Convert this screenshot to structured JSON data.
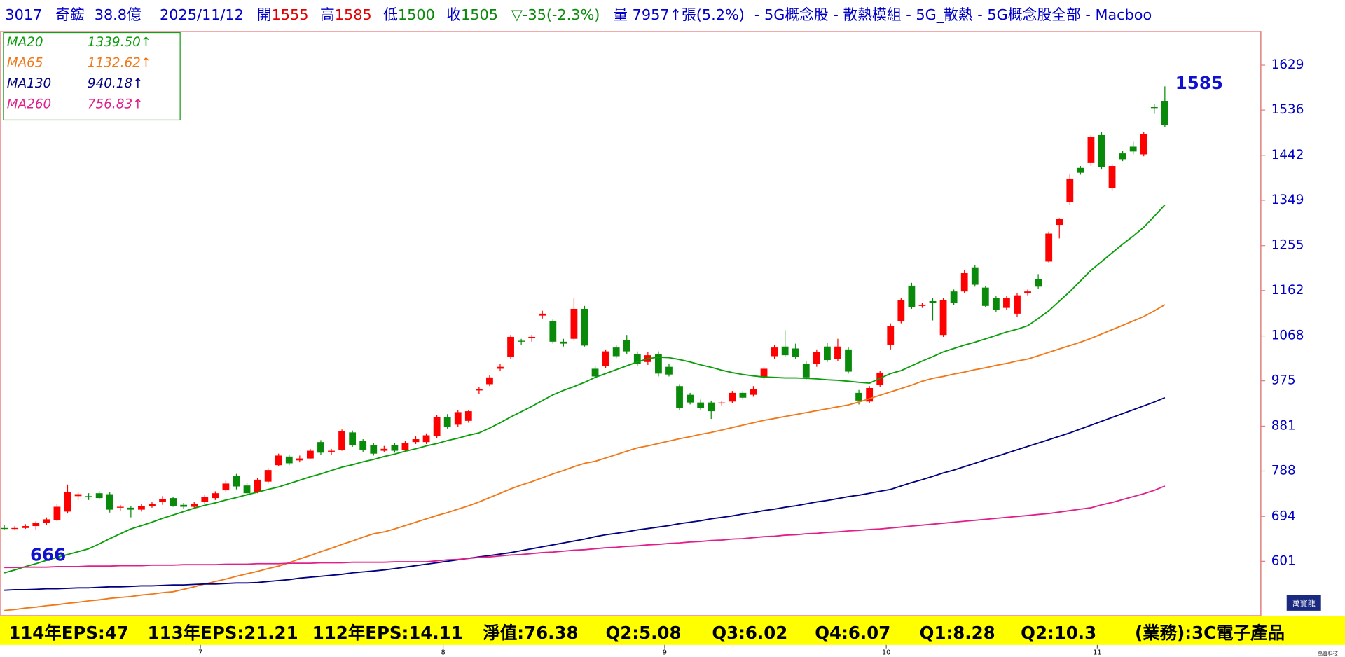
{
  "header": {
    "code": "3017",
    "name": "奇鋐",
    "market_cap": "38.8億",
    "date": "2025/11/12",
    "open_label": "開",
    "open": "1555",
    "high_label": "高",
    "high": "1585",
    "low_label": "低",
    "low": "1500",
    "close_label": "收",
    "close": "1505",
    "change": "▽-35(-2.3%)",
    "volume": "量 7957↑張(5.2%)",
    "groups": "- 5G概念股 - 散熱模組 - 5G_散熱 - 5G概念股全部 - Macboo"
  },
  "footer": {
    "items": [
      "114年EPS:47",
      "113年EPS:21.21",
      "112年EPS:14.11",
      "淨值:76.38",
      "Q2:5.08",
      "Q3:6.02",
      "Q4:6.07",
      "Q1:8.28",
      "Q2:10.3",
      "(業務):3C電子產品"
    ]
  },
  "watermark": "萬寶龍",
  "credit": "萬寶科技",
  "chart_data": {
    "type": "candlestick",
    "high_label": "1585",
    "low_label": "666",
    "up_color": "#ff0000",
    "down_color": "#0a8a0a",
    "ylim": [
      488,
      1700
    ],
    "yticks": [
      601,
      694,
      788,
      881,
      975,
      1068,
      1162,
      1255,
      1349,
      1442,
      1536,
      1629
    ],
    "grid": false,
    "legend": "top-left",
    "categories": [
      null,
      null,
      null,
      null,
      null,
      null,
      null,
      null,
      null,
      null,
      null,
      null,
      null,
      null,
      null,
      null,
      null,
      null,
      null,
      "7",
      null,
      null,
      null,
      null,
      null,
      null,
      null,
      null,
      null,
      null,
      null,
      null,
      null,
      null,
      null,
      null,
      null,
      null,
      null,
      null,
      null,
      null,
      "8",
      null,
      null,
      null,
      null,
      null,
      null,
      null,
      null,
      null,
      null,
      null,
      null,
      null,
      null,
      null,
      null,
      null,
      null,
      null,
      null,
      "9",
      null,
      null,
      null,
      null,
      null,
      null,
      null,
      null,
      null,
      null,
      null,
      null,
      null,
      null,
      null,
      null,
      null,
      null,
      null,
      null,
      "10",
      null,
      null,
      null,
      null,
      null,
      null,
      null,
      null,
      null,
      null,
      null,
      null,
      null,
      null,
      null,
      null,
      null,
      null,
      null,
      "11",
      null,
      null,
      null,
      null,
      null,
      null
    ],
    "candles": [
      [
        670,
        676,
        667,
        668
      ],
      [
        668,
        674,
        667,
        670
      ],
      [
        670,
        678,
        668,
        674
      ],
      [
        674,
        684,
        666,
        680
      ],
      [
        680,
        692,
        676,
        688
      ],
      [
        686,
        720,
        684,
        714
      ],
      [
        704,
        760,
        700,
        744
      ],
      [
        736,
        744,
        728,
        740
      ],
      [
        736,
        742,
        728,
        734
      ],
      [
        742,
        746,
        730,
        732
      ],
      [
        740,
        744,
        702,
        708
      ],
      [
        712,
        718,
        706,
        714
      ],
      [
        712,
        716,
        692,
        708
      ],
      [
        708,
        720,
        704,
        716
      ],
      [
        716,
        724,
        712,
        720
      ],
      [
        724,
        736,
        718,
        730
      ],
      [
        732,
        734,
        714,
        716
      ],
      [
        718,
        722,
        710,
        714
      ],
      [
        714,
        724,
        710,
        720
      ],
      [
        724,
        738,
        720,
        734
      ],
      [
        732,
        746,
        728,
        742
      ],
      [
        748,
        768,
        744,
        762
      ],
      [
        778,
        782,
        750,
        756
      ],
      [
        758,
        764,
        736,
        742
      ],
      [
        744,
        774,
        742,
        770
      ],
      [
        766,
        794,
        762,
        790
      ],
      [
        800,
        824,
        798,
        820
      ],
      [
        818,
        822,
        800,
        804
      ],
      [
        810,
        820,
        806,
        814
      ],
      [
        814,
        834,
        812,
        830
      ],
      [
        848,
        852,
        822,
        826
      ],
      [
        828,
        834,
        822,
        830
      ],
      [
        832,
        874,
        830,
        870
      ],
      [
        868,
        872,
        838,
        842
      ],
      [
        850,
        854,
        828,
        832
      ],
      [
        842,
        846,
        820,
        824
      ],
      [
        830,
        840,
        828,
        834
      ],
      [
        842,
        846,
        826,
        830
      ],
      [
        832,
        850,
        828,
        846
      ],
      [
        848,
        860,
        844,
        854
      ],
      [
        848,
        866,
        844,
        862
      ],
      [
        860,
        904,
        856,
        900
      ],
      [
        900,
        906,
        876,
        880
      ],
      [
        884,
        914,
        880,
        910
      ],
      [
        892,
        914,
        888,
        912
      ],
      [
        955,
        962,
        948,
        958
      ],
      [
        968,
        986,
        964,
        982
      ],
      [
        1000,
        1010,
        996,
        1004
      ],
      [
        1024,
        1070,
        1020,
        1066
      ],
      [
        1058,
        1062,
        1050,
        1056
      ],
      [
        1064,
        1070,
        1056,
        1066
      ],
      [
        1110,
        1120,
        1104,
        1114
      ],
      [
        1098,
        1102,
        1052,
        1056
      ],
      [
        1056,
        1062,
        1046,
        1052
      ],
      [
        1062,
        1146,
        1058,
        1124
      ],
      [
        1124,
        1130,
        1046,
        1048
      ],
      [
        1000,
        1006,
        980,
        984
      ],
      [
        1006,
        1040,
        1002,
        1036
      ],
      [
        1044,
        1050,
        1022,
        1026
      ],
      [
        1060,
        1070,
        1030,
        1036
      ],
      [
        1030,
        1036,
        1006,
        1010
      ],
      [
        1014,
        1034,
        1008,
        1028
      ],
      [
        1030,
        1036,
        984,
        990
      ],
      [
        1004,
        1010,
        984,
        988
      ],
      [
        964,
        968,
        914,
        918
      ],
      [
        946,
        950,
        926,
        930
      ],
      [
        930,
        936,
        914,
        918
      ],
      [
        930,
        934,
        896,
        912
      ],
      [
        928,
        934,
        924,
        930
      ],
      [
        932,
        954,
        928,
        950
      ],
      [
        950,
        954,
        936,
        940
      ],
      [
        946,
        964,
        942,
        958
      ],
      [
        982,
        1004,
        978,
        1000
      ],
      [
        1026,
        1050,
        1020,
        1044
      ],
      [
        1046,
        1080,
        1024,
        1028
      ],
      [
        1042,
        1052,
        1020,
        1024
      ],
      [
        1010,
        1016,
        978,
        982
      ],
      [
        1010,
        1040,
        1004,
        1034
      ],
      [
        1046,
        1054,
        1014,
        1018
      ],
      [
        1020,
        1062,
        1016,
        1046
      ],
      [
        1040,
        1044,
        990,
        994
      ],
      [
        950,
        956,
        926,
        934
      ],
      [
        932,
        964,
        928,
        960
      ],
      [
        966,
        996,
        962,
        992
      ],
      [
        1050,
        1094,
        1040,
        1088
      ],
      [
        1098,
        1146,
        1094,
        1142
      ],
      [
        1172,
        1178,
        1124,
        1128
      ],
      [
        1130,
        1136,
        1126,
        1132
      ],
      [
        1140,
        1146,
        1100,
        1136
      ],
      [
        1070,
        1146,
        1066,
        1142
      ],
      [
        1160,
        1164,
        1132,
        1136
      ],
      [
        1160,
        1204,
        1156,
        1198
      ],
      [
        1210,
        1214,
        1170,
        1174
      ],
      [
        1168,
        1172,
        1128,
        1130
      ],
      [
        1146,
        1150,
        1118,
        1122
      ],
      [
        1126,
        1150,
        1122,
        1146
      ],
      [
        1114,
        1156,
        1108,
        1152
      ],
      [
        1156,
        1164,
        1152,
        1160
      ],
      [
        1186,
        1196,
        1166,
        1170
      ],
      [
        1222,
        1284,
        1220,
        1280
      ],
      [
        1298,
        1312,
        1270,
        1310
      ],
      [
        1346,
        1404,
        1340,
        1394
      ],
      [
        1416,
        1420,
        1402,
        1406
      ],
      [
        1426,
        1484,
        1420,
        1480
      ],
      [
        1484,
        1490,
        1414,
        1418
      ],
      [
        1374,
        1424,
        1368,
        1420
      ],
      [
        1446,
        1452,
        1430,
        1434
      ],
      [
        1460,
        1470,
        1444,
        1450
      ],
      [
        1444,
        1490,
        1440,
        1486
      ],
      [
        1542,
        1548,
        1528,
        1540
      ],
      [
        1555,
        1585,
        1500,
        1505
      ]
    ],
    "series": [
      {
        "name": "MA20",
        "color": "#0a9e0a",
        "legend_label": "1339.50↑",
        "values": [
          577,
          583,
          590,
          596,
          603,
          609,
          615,
          621,
          627,
          637,
          648,
          658,
          668,
          675,
          682,
          690,
          697,
          704,
          711,
          717,
          722,
          728,
          733,
          739,
          744,
          750,
          755,
          762,
          769,
          776,
          782,
          789,
          796,
          801,
          807,
          812,
          818,
          823,
          829,
          834,
          840,
          845,
          851,
          856,
          862,
          867,
          877,
          888,
          900,
          911,
          922,
          934,
          946,
          955,
          963,
          972,
          982,
          990,
          998,
          1006,
          1014,
          1021,
          1024,
          1023,
          1019,
          1014,
          1008,
          1003,
          997,
          992,
          988,
          985,
          983,
          982,
          981,
          981,
          980,
          979,
          977,
          976,
          974,
          972,
          970,
          980,
          990,
          996,
          1006,
          1016,
          1025,
          1035,
          1042,
          1049,
          1055,
          1062,
          1069,
          1076,
          1082,
          1089,
          1104,
          1120,
          1140,
          1160,
          1182,
          1204,
          1222,
          1240,
          1258,
          1275,
          1293,
          1316,
          1339.5
        ]
      },
      {
        "name": "MA65",
        "color": "#f07818",
        "legend_label": "1132.62↑",
        "values": [
          499,
          501,
          504,
          506,
          509,
          511,
          514,
          516,
          519,
          521,
          524,
          526,
          528,
          531,
          533,
          536,
          538,
          543,
          548,
          554,
          559,
          564,
          570,
          575,
          580,
          586,
          591,
          598,
          606,
          613,
          621,
          628,
          636,
          643,
          651,
          658,
          662,
          668,
          675,
          682,
          689,
          696,
          702,
          709,
          716,
          724,
          733,
          742,
          751,
          759,
          766,
          774,
          782,
          789,
          797,
          804,
          808,
          815,
          822,
          829,
          836,
          840,
          845,
          850,
          855,
          859,
          864,
          868,
          873,
          878,
          883,
          888,
          893,
          897,
          901,
          905,
          909,
          913,
          917,
          921,
          925,
          931,
          938,
          945,
          952,
          959,
          966,
          974,
          980,
          984,
          989,
          993,
          998,
          1002,
          1007,
          1011,
          1016,
          1020,
          1027,
          1034,
          1041,
          1048,
          1055,
          1063,
          1072,
          1081,
          1090,
          1099,
          1108,
          1120,
          1132.62
        ]
      },
      {
        "name": "MA130",
        "color": "#000080",
        "legend_label": "940.18↑",
        "values": [
          541,
          542,
          542,
          543,
          544,
          544,
          545,
          546,
          546,
          547,
          548,
          548,
          549,
          550,
          550,
          551,
          552,
          552,
          553,
          554,
          554,
          555,
          556,
          556,
          557,
          559,
          561,
          563,
          566,
          568,
          570,
          572,
          574,
          577,
          579,
          581,
          583,
          586,
          589,
          592,
          595,
          598,
          601,
          604,
          607,
          610,
          613,
          616,
          619,
          623,
          627,
          631,
          635,
          639,
          643,
          647,
          652,
          656,
          659,
          662,
          666,
          669,
          672,
          675,
          679,
          682,
          685,
          689,
          692,
          695,
          699,
          702,
          706,
          709,
          713,
          716,
          720,
          724,
          727,
          731,
          735,
          738,
          742,
          746,
          750,
          757,
          764,
          770,
          777,
          784,
          790,
          797,
          804,
          811,
          818,
          825,
          832,
          839,
          846,
          853,
          860,
          867,
          875,
          883,
          891,
          899,
          907,
          915,
          923,
          931,
          940.18
        ]
      },
      {
        "name": "MA260",
        "color": "#e0208a",
        "legend_label": "756.83↑",
        "values": [
          588,
          588,
          589,
          589,
          589,
          590,
          590,
          590,
          591,
          591,
          591,
          592,
          592,
          592,
          593,
          593,
          593,
          594,
          594,
          594,
          594,
          595,
          595,
          595,
          596,
          596,
          596,
          597,
          597,
          597,
          598,
          598,
          598,
          599,
          599,
          599,
          599,
          600,
          600,
          600,
          600,
          602,
          604,
          605,
          607,
          609,
          610,
          612,
          614,
          615,
          617,
          619,
          620,
          622,
          624,
          625,
          627,
          629,
          630,
          632,
          633,
          635,
          636,
          638,
          639,
          641,
          642,
          644,
          645,
          647,
          648,
          650,
          652,
          653,
          655,
          656,
          658,
          659,
          661,
          662,
          664,
          665,
          667,
          668,
          670,
          672,
          674,
          676,
          678,
          680,
          682,
          684,
          686,
          688,
          690,
          692,
          694,
          696,
          698,
          700,
          703,
          706,
          709,
          712,
          718,
          723,
          729,
          735,
          741,
          748,
          756.83
        ]
      }
    ]
  }
}
